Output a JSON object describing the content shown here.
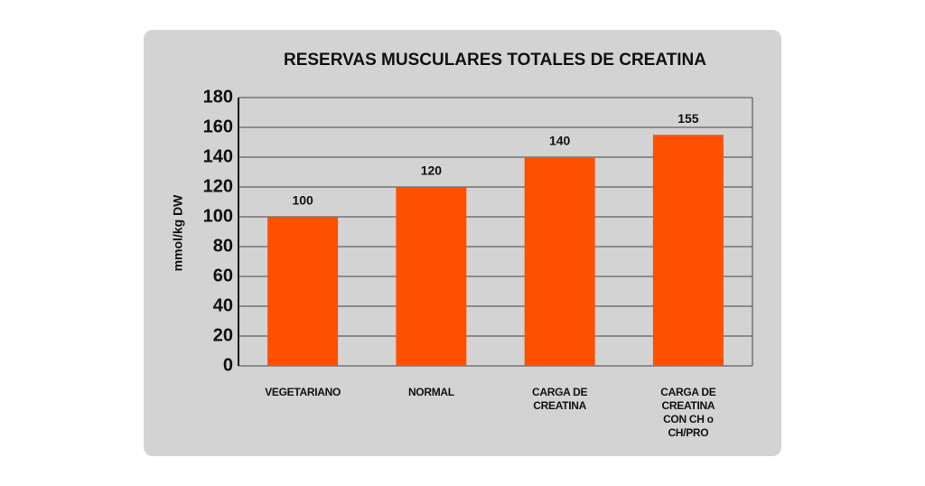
{
  "chart_data": {
    "type": "bar",
    "title": "RESERVAS MUSCULARES TOTALES DE CREATINA",
    "y_label": "mmol/kg DW",
    "categories": [
      "VEGETARIANO",
      "NORMAL",
      "CARGA DE CREATINA",
      "CARGA DE CREATINA CON CH o CH/PRO"
    ],
    "values": [
      100,
      120,
      140,
      155
    ],
    "color": "#ff5000",
    "ylim": [
      0,
      180
    ],
    "yticks": [
      0,
      20,
      40,
      60,
      80,
      100,
      120,
      140,
      160,
      180
    ],
    "grid": true
  }
}
